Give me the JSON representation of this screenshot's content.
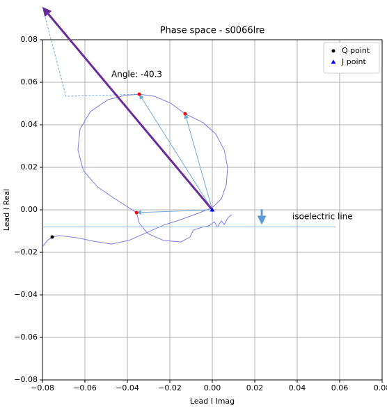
{
  "chart_data": {
    "type": "line",
    "title": "Phase space - s0066lre",
    "xlabel": "Lead I Imag",
    "ylabel": "Lead I Real",
    "xlim": [
      -0.08,
      0.08
    ],
    "ylim": [
      -0.08,
      0.08
    ],
    "xticks": [
      {
        "value": -0.08,
        "label": "−0.08"
      },
      {
        "value": -0.06,
        "label": "−0.06"
      },
      {
        "value": -0.04,
        "label": "−0.04"
      },
      {
        "value": -0.02,
        "label": "−0.02"
      },
      {
        "value": 0,
        "label": "0.00"
      },
      {
        "value": 0.02,
        "label": "0.02"
      },
      {
        "value": 0.04,
        "label": "0.04"
      },
      {
        "value": 0.06,
        "label": "0.06"
      },
      {
        "value": 0.08,
        "label": "0.08"
      }
    ],
    "yticks": [
      {
        "value": -0.08,
        "label": "−0.08"
      },
      {
        "value": -0.06,
        "label": "−0.06"
      },
      {
        "value": -0.04,
        "label": "−0.04"
      },
      {
        "value": -0.02,
        "label": "−0.02"
      },
      {
        "value": 0,
        "label": "0.00"
      },
      {
        "value": 0.02,
        "label": "0.02"
      },
      {
        "value": 0.04,
        "label": "0.04"
      },
      {
        "value": 0.06,
        "label": "0.06"
      },
      {
        "value": 0.08,
        "label": "0.08"
      }
    ],
    "grid": true,
    "legend": "upper right",
    "series": [
      {
        "name": "Q point",
        "color": "#000000",
        "marker": "circle",
        "x": [
          -0.0754
        ],
        "y": [
          -0.0128
        ]
      },
      {
        "name": "J point",
        "color": "#0000ff",
        "marker": "triangle",
        "x": [
          0
        ],
        "y": [
          0
        ]
      }
    ],
    "curves": [
      {
        "color": "#7b7bea",
        "dashed": false,
        "x": [
          -0.0797,
          -0.0777,
          -0.0754,
          -0.0721,
          -0.0639,
          -0.0557,
          -0.0475,
          -0.0393,
          -0.0311,
          -0.023,
          -0.0148,
          -0.0066,
          0,
          0.0043,
          0.0066,
          0.0072,
          0.0056,
          0.0016,
          -0.0043,
          -0.0128,
          -0.0197,
          -0.0272,
          -0.0344,
          -0.041,
          -0.0492,
          -0.0574,
          -0.0623,
          -0.0633,
          -0.0607,
          -0.0541,
          -0.0459,
          -0.0393,
          -0.0357,
          -0.0344,
          -0.0305,
          -0.023,
          -0.0148,
          -0.0105,
          -0.0089,
          -0.0049,
          -0.0016,
          0.001,
          0.0023,
          0.0043,
          0.0056,
          0.0075,
          0.0092
        ],
        "y": [
          -0.017,
          -0.0144,
          -0.0128,
          -0.0121,
          -0.0131,
          -0.0148,
          -0.0161,
          -0.0144,
          -0.0108,
          -0.0072,
          -0.0046,
          -0.0016,
          0.001,
          0.0052,
          0.0118,
          0.02,
          0.0282,
          0.0357,
          0.041,
          0.0452,
          0.0502,
          0.0534,
          0.0544,
          0.0538,
          0.0518,
          0.0462,
          0.038,
          0.0282,
          0.0184,
          0.0108,
          0.0052,
          0.001,
          -0.0013,
          -0.0062,
          -0.0111,
          -0.0144,
          -0.0151,
          -0.0128,
          -0.0095,
          -0.0082,
          -0.0075,
          -0.0056,
          -0.0082,
          -0.0052,
          -0.0069,
          -0.0036,
          -0.0023
        ]
      },
      {
        "color": "#8fbfe8",
        "dashed": false,
        "x": [
          -0.08,
          0.058
        ],
        "y": [
          -0.008,
          -0.008
        ]
      },
      {
        "color": "#6fa8dc",
        "dashed": true,
        "x": [
          -0.08,
          -0.0689,
          -0.0344
        ],
        "y": [
          0.0954,
          0.0534,
          0.0544
        ]
      }
    ],
    "arrows": [
      {
        "color": "#6fa8dc",
        "width": 1,
        "x": [
          0,
          -0.0344
        ],
        "y": [
          0,
          0.0544
        ]
      },
      {
        "color": "#6fa8dc",
        "width": 1,
        "x": [
          0,
          -0.0128
        ],
        "y": [
          0,
          0.0452
        ]
      },
      {
        "color": "#6fa8dc",
        "width": 1,
        "x": [
          0,
          -0.0357
        ],
        "y": [
          0,
          -0.0013
        ]
      },
      {
        "color": "#6a2c9c",
        "width": 3,
        "x": [
          0,
          -0.08
        ],
        "y": [
          0,
          0.0954
        ]
      },
      {
        "color": "#5b9bd5",
        "width": 3,
        "x": [
          0.0233,
          0.0233
        ],
        "y": [
          0.0003,
          -0.007
        ]
      }
    ],
    "points": {
      "color": "#ff0000",
      "x": [
        -0.0344,
        -0.0128,
        -0.0357
      ],
      "y": [
        0.0544,
        0.0452,
        -0.0013
      ]
    },
    "annotations": [
      "Angle: -40.3",
      "isoelectric line"
    ]
  }
}
